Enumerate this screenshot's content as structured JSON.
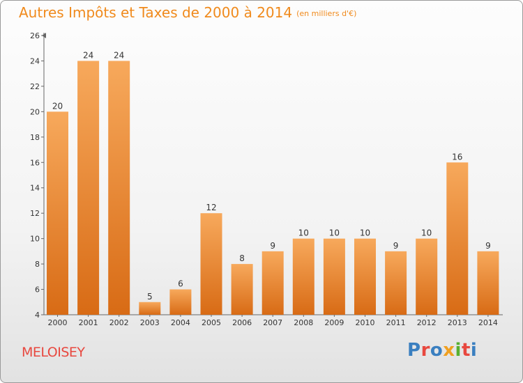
{
  "chart_data": {
    "type": "bar",
    "title": "Autres Impôts et Taxes de 2000 à 2014",
    "unit": "(en milliers d'€)",
    "categories": [
      "2000",
      "2001",
      "2002",
      "2003",
      "2004",
      "2005",
      "2006",
      "2007",
      "2008",
      "2009",
      "2010",
      "2011",
      "2012",
      "2013",
      "2014"
    ],
    "values": [
      20,
      24,
      24,
      5,
      6,
      12,
      8,
      9,
      10,
      10,
      10,
      9,
      10,
      16,
      9
    ],
    "ylim": [
      4,
      26
    ],
    "yticks": [
      4,
      6,
      8,
      10,
      12,
      14,
      16,
      18,
      20,
      22,
      24,
      26
    ],
    "bar_color_top": "#f7a95c",
    "bar_color_bottom": "#d86b15",
    "grid": false,
    "legend": "none"
  },
  "place_name": "MELOISEY",
  "logo": {
    "text": "Proxiti",
    "letters": [
      {
        "ch": "P",
        "color": "#3a7fc0"
      },
      {
        "ch": "r",
        "color": "#e8483f"
      },
      {
        "ch": "o",
        "color": "#3a7fc0"
      },
      {
        "ch": "x",
        "color": "#f0a020"
      },
      {
        "ch": "i",
        "color": "#58b030"
      },
      {
        "ch": "t",
        "color": "#e8483f"
      },
      {
        "ch": "i",
        "color": "#3a7fc0"
      }
    ]
  }
}
